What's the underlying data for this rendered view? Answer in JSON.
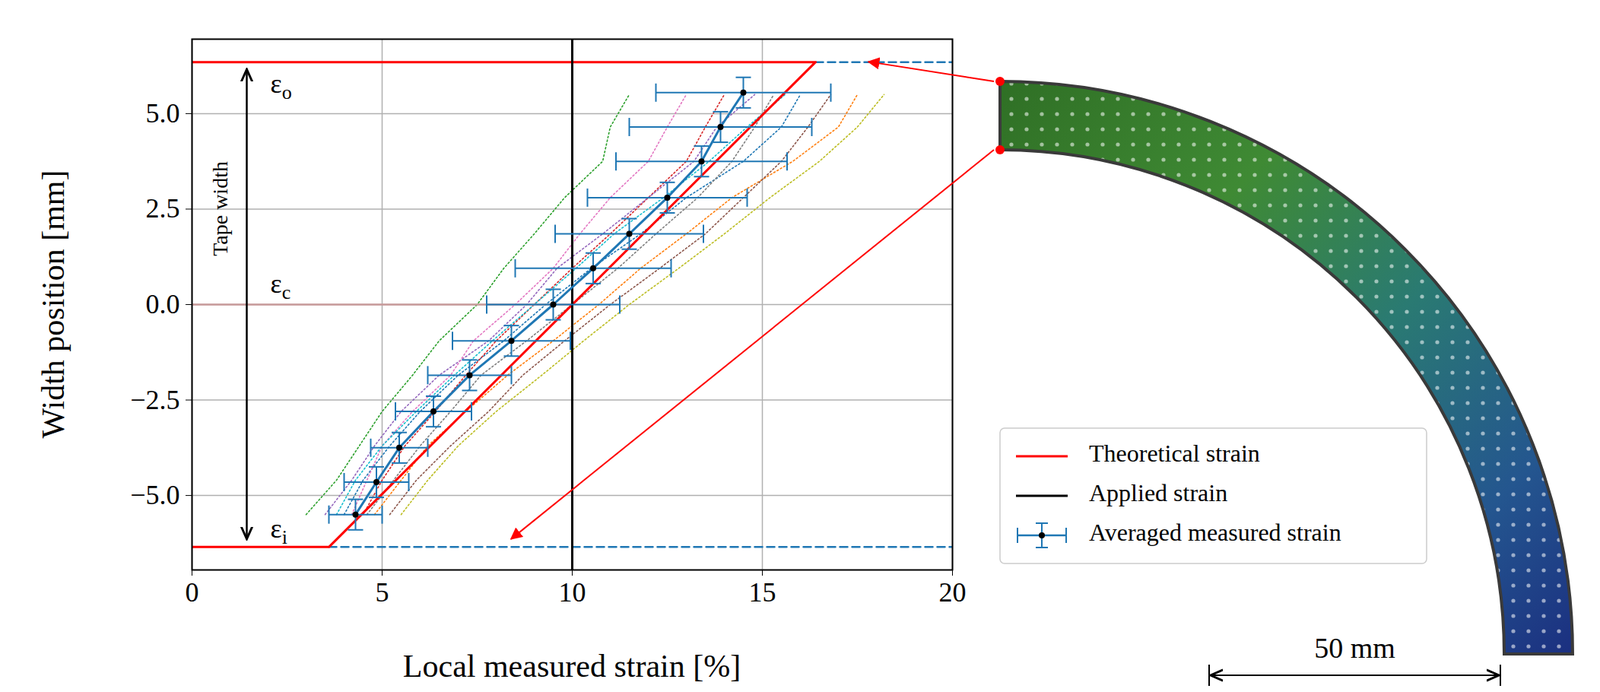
{
  "chart_data": {
    "type": "line",
    "xlabel": "Local measured strain [%]",
    "ylabel": "Width position [mm]",
    "xlim": [
      0,
      20
    ],
    "ylim": [
      -6.95,
      6.95
    ],
    "xticks": [
      0,
      5,
      10,
      15,
      20
    ],
    "yticks": [
      {
        "value": -5,
        "label": "−5.0"
      },
      {
        "value": -2.5,
        "label": "−2.5"
      },
      {
        "value": 0,
        "label": "0.0"
      },
      {
        "value": 2.5,
        "label": "2.5"
      },
      {
        "value": 5,
        "label": "5.0"
      }
    ],
    "grid": true,
    "legend": "right",
    "samples": {
      "line_style": "dotted",
      "y": [
        -5.5,
        -4.6,
        -3.7,
        -2.8,
        -1.85,
        -0.95,
        0,
        0.95,
        1.85,
        2.8,
        3.75,
        4.65,
        5.5
      ],
      "series": [
        {
          "color": "#2ca02c",
          "values": [
            3.0,
            3.8,
            4.4,
            5.0,
            5.8,
            6.5,
            7.5,
            8.2,
            9.0,
            9.8,
            10.8,
            11.0,
            11.5
          ]
        },
        {
          "color": "#1f77b4",
          "values": [
            4.0,
            4.5,
            5.2,
            6.0,
            7.0,
            8.2,
            9.3,
            10.5,
            11.8,
            13.0,
            14.5,
            15.5,
            16.0
          ]
        },
        {
          "color": "#ff7f0e",
          "values": [
            4.8,
            5.5,
            6.2,
            7.2,
            8.3,
            9.5,
            10.7,
            11.8,
            13.0,
            14.2,
            15.8,
            17.0,
            17.5
          ]
        },
        {
          "color": "#d62728",
          "values": [
            4.5,
            5.0,
            5.6,
            6.4,
            7.2,
            8.0,
            9.0,
            10.0,
            11.0,
            12.0,
            13.0,
            13.5,
            14.0
          ]
        },
        {
          "color": "#9467bd",
          "values": [
            3.5,
            4.2,
            4.8,
            5.5,
            6.5,
            7.8,
            8.8,
            9.6,
            10.8,
            12.0,
            13.2,
            13.8,
            14.8
          ]
        },
        {
          "color": "#8c564b",
          "values": [
            5.2,
            5.9,
            6.8,
            7.8,
            8.7,
            9.8,
            11.0,
            12.3,
            13.5,
            14.5,
            15.5,
            16.2,
            16.8
          ]
        },
        {
          "color": "#e377c2",
          "values": [
            4.2,
            4.6,
            5.0,
            5.8,
            6.8,
            7.4,
            8.5,
            9.5,
            10.2,
            11.0,
            12.0,
            12.5,
            13.0
          ]
        },
        {
          "color": "#7f7f7f",
          "values": [
            4.6,
            5.3,
            6.0,
            6.8,
            7.6,
            8.8,
            10.0,
            11.2,
            12.2,
            13.3,
            14.2,
            14.8,
            15.3
          ]
        },
        {
          "color": "#bcbd22",
          "values": [
            5.5,
            6.2,
            7.0,
            8.0,
            9.2,
            10.3,
            11.5,
            12.8,
            14.0,
            15.2,
            16.5,
            17.5,
            18.2
          ]
        },
        {
          "color": "#17becf",
          "values": [
            3.8,
            4.3,
            5.0,
            5.9,
            6.9,
            7.9,
            9.0,
            10.1,
            11.1,
            12.4,
            13.6,
            14.6,
            15.6
          ]
        }
      ]
    },
    "series": [
      {
        "color": "#c89a9a",
        "x": [
          0,
          10
        ],
        "y": [
          0,
          0
        ]
      },
      {
        "color": "#1f77b4",
        "line_style": "dashed",
        "x": [
          16.4,
          20,
          null,
          3.6,
          20
        ],
        "y": [
          6.35,
          6.35,
          null,
          -6.35,
          -6.35
        ]
      },
      {
        "name": "Theoretical strain",
        "color": "#ff0000",
        "x": [
          0,
          3.6,
          16.4,
          0
        ],
        "y": [
          -6.35,
          -6.35,
          6.35,
          6.35
        ]
      },
      {
        "name": "Applied strain",
        "color": "#000000",
        "x": [
          10,
          10
        ],
        "y": [
          -6.95,
          6.95
        ]
      },
      {
        "name": "Averaged measured strain",
        "color": "#1f77b4",
        "marker": "dot",
        "x": [
          4.3,
          4.85,
          5.45,
          6.35,
          7.3,
          8.4,
          9.5,
          10.55,
          11.5,
          12.5,
          13.4,
          13.9,
          14.5
        ],
        "y": [
          -5.5,
          -4.65,
          -3.75,
          -2.8,
          -1.85,
          -0.95,
          0,
          0.95,
          1.85,
          2.8,
          3.75,
          4.65,
          5.55
        ],
        "xerr": [
          0.7,
          0.85,
          0.75,
          1.0,
          1.1,
          1.55,
          1.75,
          2.05,
          1.95,
          2.1,
          2.25,
          2.4,
          2.3
        ],
        "yerr": [
          0.4,
          0.4,
          0.4,
          0.4,
          0.4,
          0.4,
          0.4,
          0.4,
          0.4,
          0.4,
          0.4,
          0.4,
          0.4
        ]
      }
    ],
    "annotations": [
      {
        "text": "ε",
        "subscript": "o",
        "x": 2.07,
        "y": 5.7
      },
      {
        "text": "ε",
        "subscript": "c",
        "x": 2.07,
        "y": 0.45
      },
      {
        "text": "ε",
        "subscript": "i",
        "x": 2.07,
        "y": -5.95
      }
    ],
    "tape_width": {
      "text": "Tape width",
      "x": 1.45,
      "y1": -6.15,
      "y2": 6.15,
      "text_y": 2.5
    }
  },
  "image": {
    "scale_bar_label": "50 mm"
  }
}
